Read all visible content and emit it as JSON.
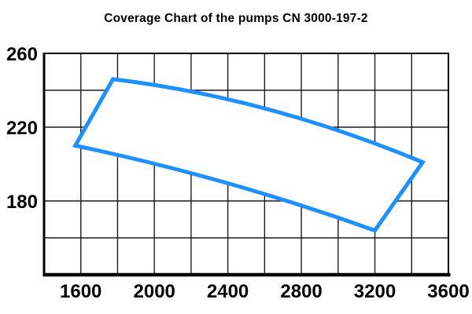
{
  "window": {
    "background": "#ffffff"
  },
  "chart_data": {
    "type": "line",
    "title": "Coverage Chart of the pumps CN 3000-197-2",
    "grid": true,
    "legend": false,
    "x_axis": {
      "min": 1400,
      "max": 3600,
      "grid_step": 200,
      "ticks": [
        "1600",
        "2000",
        "2400",
        "2800",
        "3200",
        "3600"
      ],
      "tick_values": [
        1600,
        2000,
        2400,
        2800,
        3200,
        3600
      ]
    },
    "y_axis": {
      "min": 140,
      "max": 260,
      "grid_step": 20,
      "ticks": [
        "260",
        "220",
        "180"
      ],
      "tick_values": [
        260,
        220,
        180
      ],
      "missing_gridlines": [
        200
      ]
    },
    "series": [
      {
        "name": "pump-coverage-envelope",
        "shape": "closed-envelope",
        "stroke": "#1e90ff",
        "fill": "#ffffff",
        "stroke_width_px": 5,
        "vertices": [
          {
            "label": "left",
            "x": 1570,
            "y": 210
          },
          {
            "label": "top-peak",
            "x": 1775,
            "y": 246
          },
          {
            "label": "right",
            "x": 3460,
            "y": 201
          },
          {
            "label": "bottom-right",
            "x": 3200,
            "y": 164
          }
        ],
        "top_edge_control_point": {
          "x": 2615,
          "y": 236
        },
        "bottom_edge_control_point": {
          "x": 2385,
          "y": 193
        }
      }
    ]
  },
  "colors": {
    "envelope_stroke": "#1e90ff",
    "grid_line": "#1c1c1c",
    "border": "#000000",
    "text": "#000000",
    "background": "#ffffff"
  }
}
